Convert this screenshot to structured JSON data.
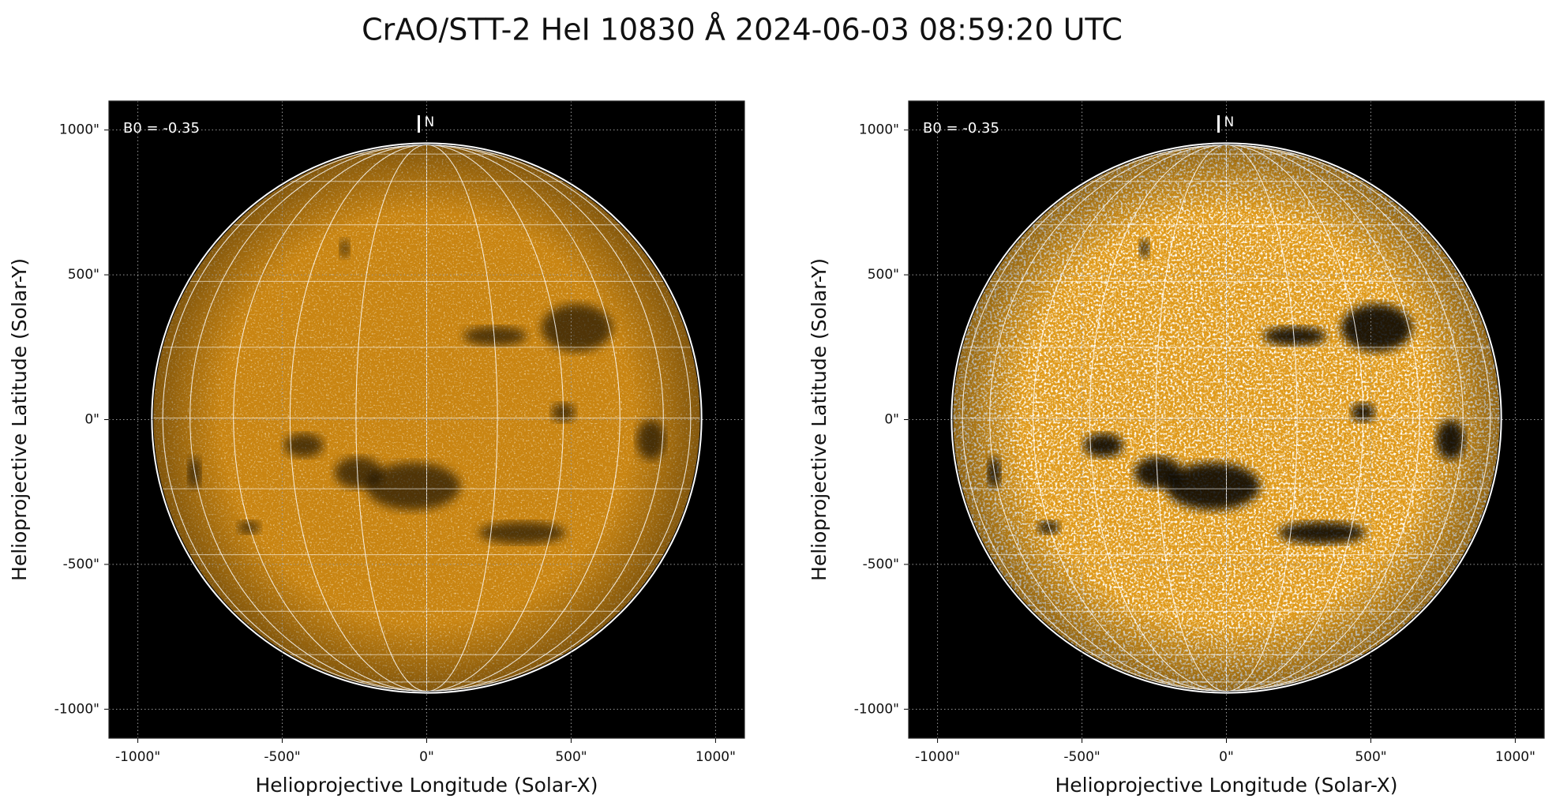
{
  "title": "CrAO/STT-2 HeI 10830 Å 2024-06-03 08:59:20 UTC",
  "chart_data": [
    {
      "type": "image",
      "annotation": "B0 = -0.35",
      "north_label": "N",
      "xlabel": "Helioprojective Longitude (Solar-X)",
      "ylabel": "Helioprojective Latitude (Solar-Y)",
      "xlim": [
        -1100,
        1100
      ],
      "ylim": [
        -1100,
        1100
      ],
      "xticks": [
        {
          "value": -1000,
          "label": "-1000\""
        },
        {
          "value": -500,
          "label": "-500\""
        },
        {
          "value": 0,
          "label": "0\""
        },
        {
          "value": 500,
          "label": "500\""
        },
        {
          "value": 1000,
          "label": "1000\""
        }
      ],
      "yticks": [
        {
          "value": -1000,
          "label": "-1000\""
        },
        {
          "value": -500,
          "label": "-500\""
        },
        {
          "value": 0,
          "label": "0\""
        },
        {
          "value": 500,
          "label": "500\""
        },
        {
          "value": 1000,
          "label": "1000\""
        }
      ],
      "grid": true,
      "color": "#c98512"
    },
    {
      "type": "image",
      "annotation": "B0 = -0.35",
      "north_label": "N",
      "xlabel": "Helioprojective Longitude (Solar-X)",
      "ylabel": "Helioprojective Latitude (Solar-Y)",
      "xlim": [
        -1100,
        1100
      ],
      "ylim": [
        -1100,
        1100
      ],
      "xticks": [
        {
          "value": -1000,
          "label": "-1000\""
        },
        {
          "value": -500,
          "label": "-500\""
        },
        {
          "value": 0,
          "label": "0\""
        },
        {
          "value": 500,
          "label": "500\""
        },
        {
          "value": 1000,
          "label": "1000\""
        }
      ],
      "yticks": [
        {
          "value": -1000,
          "label": "-1000\""
        },
        {
          "value": -500,
          "label": "-500\""
        },
        {
          "value": 0,
          "label": "0\""
        },
        {
          "value": 500,
          "label": "500\""
        },
        {
          "value": 1000,
          "label": "1000\""
        }
      ],
      "grid": true,
      "color": "#e09a1a"
    }
  ]
}
